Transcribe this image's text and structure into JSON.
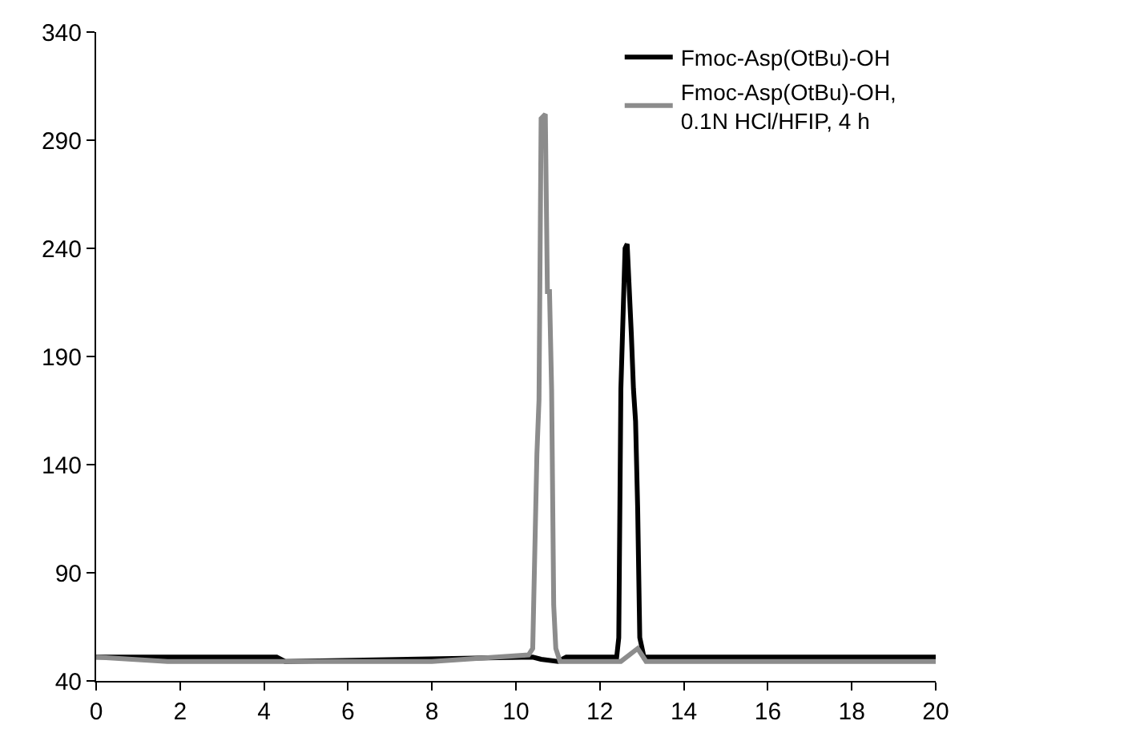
{
  "chart_data": {
    "type": "line",
    "xlim": [
      0,
      20
    ],
    "xticks": [
      0,
      2,
      4,
      6,
      8,
      10,
      12,
      14,
      16,
      18,
      20
    ],
    "ylim": [
      40,
      340
    ],
    "yticks": [
      40,
      90,
      140,
      190,
      240,
      290,
      340
    ],
    "grid": false,
    "legend": "top right",
    "marker": "none",
    "line_style": "solid",
    "series": [
      {
        "name": "Fmoc-Asp(OtBu)-OH",
        "color": "#000000",
        "x": [
          0,
          1.7,
          4.3,
          4.5,
          10.4,
          10.6,
          11.0,
          11.2,
          12.4,
          12.45,
          12.5,
          12.6,
          12.65,
          12.75,
          12.8,
          12.85,
          12.9,
          12.95,
          13.05,
          13.2,
          15.2,
          20
        ],
        "values": [
          51,
          51,
          51,
          49,
          51,
          50,
          49,
          51,
          51,
          60,
          175,
          240,
          242,
          200,
          175,
          160,
          120,
          60,
          51,
          51,
          51,
          51
        ]
      },
      {
        "name": "Fmoc-Asp(OtBu)-OH,\n0.1N HCl/HFIP, 4 h",
        "color": "#8c8c8c",
        "x": [
          0,
          1.7,
          4,
          8,
          10.3,
          10.4,
          10.5,
          10.55,
          10.6,
          10.7,
          10.75,
          10.8,
          10.85,
          10.9,
          10.95,
          11.05,
          12.5,
          12.7,
          12.9,
          13.1,
          20
        ],
        "values": [
          51,
          49,
          49,
          49,
          52,
          55,
          145,
          170,
          300,
          302,
          220,
          220,
          175,
          75,
          55,
          49,
          49,
          52,
          55,
          49,
          49
        ]
      }
    ]
  }
}
